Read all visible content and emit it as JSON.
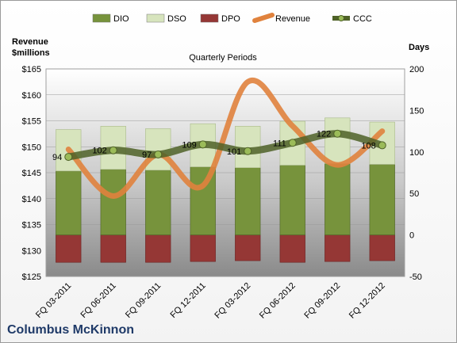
{
  "chart_data": {
    "type": "bar",
    "title": "Quarterly Periods",
    "company": "Columbus McKinnon",
    "left_axis_title": "Revenue\n$millions",
    "right_axis_title": "Days",
    "categories": [
      "FQ 03-2011",
      "FQ 06-2011",
      "FQ 09-2011",
      "FQ 12-2011",
      "FQ 03-2012",
      "FQ 06-2012",
      "FQ 09-2012",
      "FQ 12-2012"
    ],
    "left_ylim": [
      125,
      165
    ],
    "left_ticks": [
      "$125",
      "$130",
      "$135",
      "$140",
      "$145",
      "$150",
      "$155",
      "$160",
      "$165"
    ],
    "right_ylim": [
      -50,
      200
    ],
    "right_ticks": [
      "-50",
      "0",
      "50",
      "100",
      "150",
      "200"
    ],
    "series": [
      {
        "name": "DIO",
        "color": "#77933c",
        "axis": "right",
        "values": [
          77,
          79,
          78,
          82,
          81,
          84,
          86,
          85
        ]
      },
      {
        "name": "DSO",
        "color": "#d7e4bd",
        "axis": "right",
        "values": [
          50,
          52,
          50,
          52,
          50,
          53,
          55,
          51
        ]
      },
      {
        "name": "DPO",
        "color": "#953735",
        "axis": "right",
        "values": [
          -33,
          -33,
          -33,
          -32,
          -31,
          -33,
          -32,
          -31
        ]
      },
      {
        "name": "Revenue",
        "color": "#e0823d",
        "axis": "left",
        "values": [
          149.5,
          140.5,
          148.5,
          142.5,
          162.5,
          154,
          146.5,
          153
        ]
      },
      {
        "name": "CCC",
        "color": "#4f6228",
        "axis": "right",
        "values": [
          94,
          102,
          97,
          109,
          101,
          111,
          122,
          108
        ],
        "labels": [
          "94",
          "102",
          "97",
          "109",
          "101",
          "111",
          "122",
          "108"
        ]
      }
    ],
    "legend": [
      "DIO",
      "DSO",
      "DPO",
      "Revenue",
      "CCC"
    ],
    "legend_position": "top"
  }
}
